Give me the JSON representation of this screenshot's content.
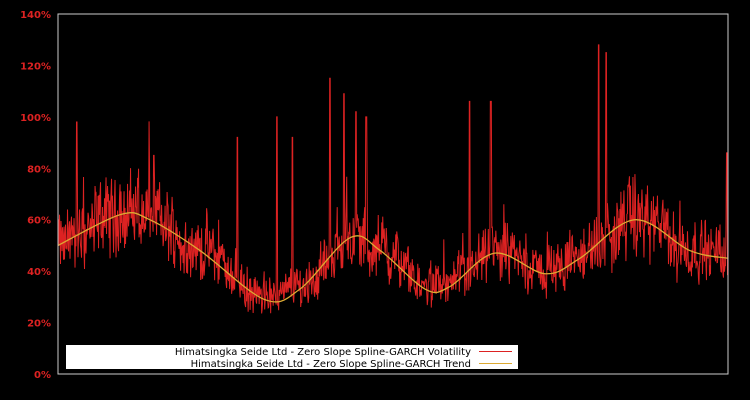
{
  "chart_data": {
    "type": "line",
    "title": "",
    "xlabel": "",
    "ylabel": "",
    "ylim": [
      0,
      140
    ],
    "yticks": [
      "0%",
      "20%",
      "40%",
      "60%",
      "80%",
      "100%",
      "120%",
      "140%"
    ],
    "grid": false,
    "legend_position": "lower left",
    "background": "#000000",
    "axis_color": "#cccccc",
    "tick_color": "#dd2222",
    "series": [
      {
        "name": "Himatsingka Seide Ltd - Zero Slope Spline-GARCH Volatility",
        "color": "#dd2222",
        "description": "Noisy daily volatility oscillating around trend, range ~20% to ~128%",
        "spikes": [
          {
            "x_frac": 0.028,
            "value": 98
          },
          {
            "x_frac": 0.143,
            "value": 85
          },
          {
            "x_frac": 0.268,
            "value": 92
          },
          {
            "x_frac": 0.327,
            "value": 100
          },
          {
            "x_frac": 0.35,
            "value": 92
          },
          {
            "x_frac": 0.406,
            "value": 115
          },
          {
            "x_frac": 0.427,
            "value": 109
          },
          {
            "x_frac": 0.445,
            "value": 102
          },
          {
            "x_frac": 0.46,
            "value": 100
          },
          {
            "x_frac": 0.614,
            "value": 106
          },
          {
            "x_frac": 0.646,
            "value": 106
          },
          {
            "x_frac": 0.807,
            "value": 128
          },
          {
            "x_frac": 0.818,
            "value": 125
          },
          {
            "x_frac": 0.998,
            "value": 86
          }
        ]
      },
      {
        "name": "Himatsingka Seide Ltd - Zero Slope Spline-GARCH Trend",
        "color": "#ddaa33",
        "points": [
          {
            "x_frac": 0.0,
            "value": 50
          },
          {
            "x_frac": 0.093,
            "value": 62
          },
          {
            "x_frac": 0.137,
            "value": 60
          },
          {
            "x_frac": 0.212,
            "value": 48
          },
          {
            "x_frac": 0.308,
            "value": 29
          },
          {
            "x_frac": 0.361,
            "value": 33
          },
          {
            "x_frac": 0.436,
            "value": 53
          },
          {
            "x_frac": 0.481,
            "value": 48
          },
          {
            "x_frac": 0.548,
            "value": 33
          },
          {
            "x_frac": 0.585,
            "value": 34
          },
          {
            "x_frac": 0.652,
            "value": 47
          },
          {
            "x_frac": 0.727,
            "value": 39
          },
          {
            "x_frac": 0.779,
            "value": 45
          },
          {
            "x_frac": 0.861,
            "value": 60
          },
          {
            "x_frac": 0.943,
            "value": 48
          },
          {
            "x_frac": 1.0,
            "value": 45
          }
        ]
      }
    ]
  },
  "legend": {
    "items": [
      {
        "label": "Himatsingka Seide Ltd - Zero Slope Spline-GARCH Volatility",
        "color": "#dd2222"
      },
      {
        "label": "Himatsingka Seide Ltd - Zero Slope Spline-GARCH Trend",
        "color": "#ddaa33"
      }
    ]
  }
}
